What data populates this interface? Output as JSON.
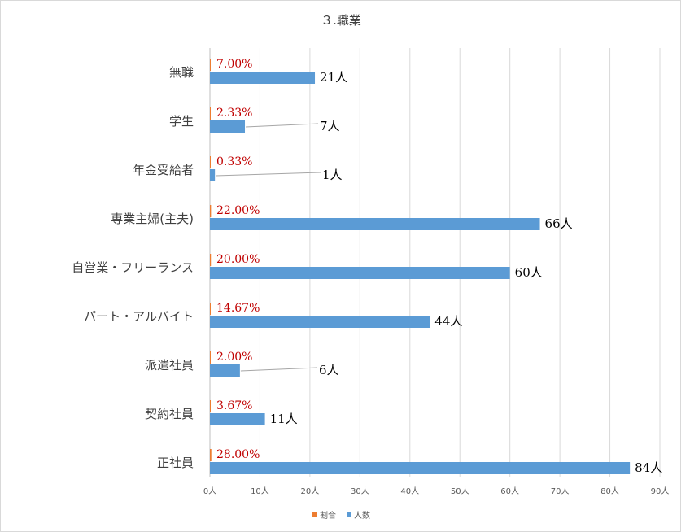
{
  "chart_data": {
    "type": "bar",
    "orientation": "horizontal",
    "title": "３.職業",
    "categories": [
      "無職",
      "学生",
      "年金受給者",
      "専業主婦(主夫)",
      "自営業・フリーランス",
      "パート・アルバイト",
      "派遣社員",
      "契約社員",
      "正社員"
    ],
    "series": [
      {
        "name": "割合",
        "color": "#ed7d31",
        "values": [
          0.07,
          0.0233,
          0.0033,
          0.22,
          0.2,
          0.1467,
          0.02,
          0.0367,
          0.28
        ],
        "labels": [
          "7.00%",
          "2.33%",
          "0.33%",
          "22.00%",
          "20.00%",
          "14.67%",
          "2.00%",
          "3.67%",
          "28.00%"
        ]
      },
      {
        "name": "人数",
        "color": "#5b9bd5",
        "values": [
          21,
          7,
          1,
          66,
          60,
          44,
          6,
          11,
          84
        ],
        "labels": [
          "21人",
          "7人",
          "1人",
          "66人",
          "60人",
          "44人",
          "6人",
          "11人",
          "84人"
        ]
      }
    ],
    "xlim": [
      0,
      90
    ],
    "xticks": [
      "0人",
      "10人",
      "20人",
      "30人",
      "40人",
      "50人",
      "60人",
      "70人",
      "80人",
      "90人"
    ],
    "grid": true,
    "legend": "bottom",
    "pct_label_color": "#c00000"
  }
}
